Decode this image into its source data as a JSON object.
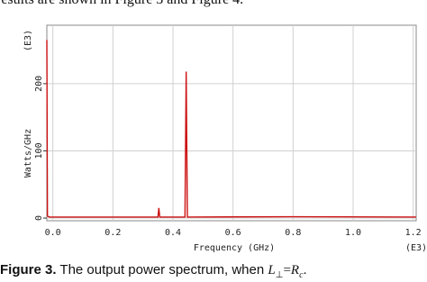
{
  "header_text": "results are shown in Figure 3 and Figure 4.",
  "chart_data": {
    "type": "line",
    "x_label": "Frequency  (GHz)",
    "y_label": "Watts/GHz",
    "x_unit": "(E3)",
    "y_unit": "(E3)",
    "x": [
      -0.02,
      -0.018,
      -0.012,
      0.35,
      0.353,
      0.356,
      0.44,
      0.444,
      0.448,
      0.8,
      1.21
    ],
    "values": [
      265,
      3,
      1.5,
      1.5,
      15,
      1.5,
      1.5,
      218,
      1.5,
      2,
      1.5
    ],
    "color": "#cc1111",
    "grid": true,
    "xlim": [
      -0.02,
      1.21
    ],
    "ylim": [
      -4,
      287
    ],
    "xticks": [
      {
        "value": 0,
        "label": "0.0"
      },
      0.2,
      0.4,
      0.6,
      0.8,
      {
        "value": 1,
        "label": "1.0"
      },
      1.2
    ],
    "yticks": [
      0,
      100,
      200
    ]
  },
  "caption": {
    "label": "Figure 3.",
    "text": " The output power spectrum, when ",
    "formula": [
      "L",
      "⊥",
      "=",
      "R",
      "c",
      "."
    ]
  }
}
